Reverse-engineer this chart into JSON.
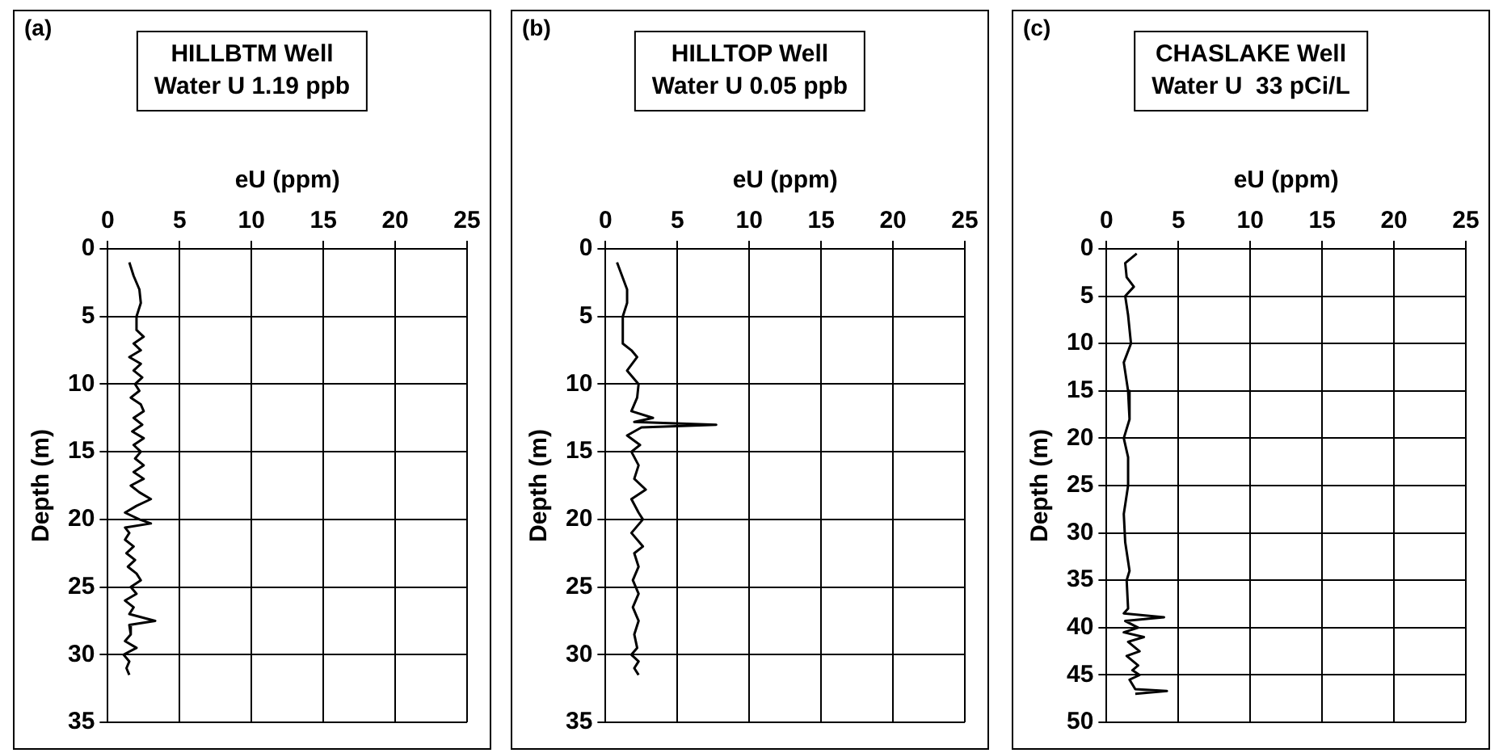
{
  "chart_data": [
    {
      "type": "line",
      "title": "HILLBTM Well",
      "subtitle": "Water U 1.19 ppb",
      "xlabel": "eU (ppm)",
      "ylabel": "Depth (m)",
      "annotations": [
        "(a)"
      ],
      "xlim": [
        0,
        25
      ],
      "xticks": [
        0,
        5,
        10,
        15,
        20,
        25
      ],
      "ylim": [
        35,
        0
      ],
      "yticks": [
        0,
        5,
        10,
        15,
        20,
        25,
        30,
        35
      ],
      "grid": true,
      "legend": false,
      "marker": "none",
      "line_style": "solid",
      "series": [
        {
          "color": "#000000",
          "x": [
            1.5,
            1.8,
            2.2,
            2.3,
            2.0,
            2.0,
            2.5,
            1.8,
            2.3,
            1.5,
            2.3,
            1.8,
            2.4,
            1.9,
            2.2,
            1.6,
            2.3,
            2.5,
            1.8,
            2.4,
            1.7,
            2.5,
            1.8,
            2.3,
            1.9,
            2.5,
            1.8,
            2.5,
            1.6,
            2.2,
            3.0,
            2.0,
            1.2,
            2.2,
            3.0,
            1.2,
            1.5,
            1.2,
            1.8,
            1.3,
            1.9,
            1.4,
            2.0,
            2.3,
            1.6,
            2.0,
            1.2,
            1.8,
            1.5,
            3.3,
            1.5,
            1.6,
            1.2,
            2.0,
            1.1,
            1.5,
            1.3,
            1.5
          ],
          "values": [
            1,
            2,
            3,
            4,
            5,
            6,
            6.5,
            7,
            7.5,
            8,
            8.5,
            9,
            9.5,
            10,
            10.5,
            11,
            11.5,
            12,
            12.5,
            13,
            13.5,
            14,
            14.5,
            15,
            15.5,
            16,
            16.5,
            17,
            17.5,
            18,
            18.5,
            19,
            19.5,
            20,
            20.3,
            20.6,
            21,
            21.5,
            22,
            22.5,
            23,
            23.5,
            24,
            24.5,
            25,
            25.5,
            26,
            26.5,
            27,
            27.5,
            27.8,
            28.5,
            29,
            29.5,
            30,
            30.5,
            31,
            31.5
          ]
        }
      ]
    },
    {
      "type": "line",
      "title": "HILLTOP Well",
      "subtitle": "Water U 0.05 ppb",
      "xlabel": "eU (ppm)",
      "ylabel": "Depth (m)",
      "annotations": [
        "(b)"
      ],
      "xlim": [
        0,
        25
      ],
      "xticks": [
        0,
        5,
        10,
        15,
        20,
        25
      ],
      "ylim": [
        35,
        0
      ],
      "yticks": [
        0,
        5,
        10,
        15,
        20,
        25,
        30,
        35
      ],
      "grid": true,
      "legend": false,
      "marker": "none",
      "line_style": "solid",
      "series": [
        {
          "color": "#000000",
          "x": [
            0.8,
            1.5,
            1.5,
            1.2,
            1.2,
            1.8,
            2.2,
            1.5,
            2.3,
            2.2,
            1.8,
            3.3,
            2.0,
            7.7,
            2.5,
            1.5,
            2.4,
            1.8,
            2.3,
            2.0,
            2.8,
            1.8,
            2.3,
            2.6,
            1.8,
            2.6,
            2.0,
            2.3,
            1.9,
            2.3,
            1.9,
            2.3,
            2.0,
            2.2,
            1.8,
            2.3,
            2.0,
            2.3
          ],
          "values": [
            1,
            3,
            4,
            5,
            7,
            7.5,
            8,
            9,
            10,
            11,
            12,
            12.5,
            12.8,
            13,
            13.2,
            13.8,
            14.5,
            15,
            16,
            17,
            17.8,
            18.5,
            19.5,
            20,
            21,
            22,
            22.5,
            23.5,
            24.5,
            25.5,
            26.5,
            27.5,
            28.5,
            29.5,
            30,
            30.5,
            31,
            31.5
          ]
        }
      ]
    },
    {
      "type": "line",
      "title": "CHASLAKE Well",
      "subtitle": "Water U  33 pCi/L",
      "xlabel": "eU (ppm)",
      "ylabel": "Depth (m)",
      "annotations": [
        "(c)"
      ],
      "xlim": [
        0,
        25
      ],
      "xticks": [
        0,
        5,
        10,
        15,
        20,
        25
      ],
      "ylim": [
        50,
        0
      ],
      "yticks": [
        0,
        5,
        10,
        15,
        20,
        25,
        30,
        35,
        40,
        45,
        50
      ],
      "grid": true,
      "legend": false,
      "marker": "none",
      "line_style": "solid",
      "series": [
        {
          "color": "#000000",
          "x": [
            2.1,
            1.3,
            1.4,
            1.9,
            1.3,
            1.5,
            1.7,
            1.2,
            1.5,
            1.6,
            1.2,
            1.5,
            1.5,
            1.2,
            1.3,
            1.6,
            1.4,
            1.5,
            1.2,
            4.0,
            1.3,
            2.2,
            1.2,
            2.6,
            1.5,
            2.3,
            1.4,
            2.2,
            1.8,
            2.3,
            1.6,
            2.0,
            4.2,
            2.0
          ],
          "values": [
            0.5,
            1.5,
            3,
            4,
            5,
            7,
            10,
            12,
            15,
            18,
            20,
            22,
            25,
            28,
            31,
            34,
            35,
            38,
            38.5,
            38.9,
            39.3,
            40,
            40.5,
            41,
            41.5,
            42.5,
            43,
            44,
            44.5,
            45,
            45.5,
            46.5,
            46.7,
            47
          ]
        }
      ]
    }
  ]
}
